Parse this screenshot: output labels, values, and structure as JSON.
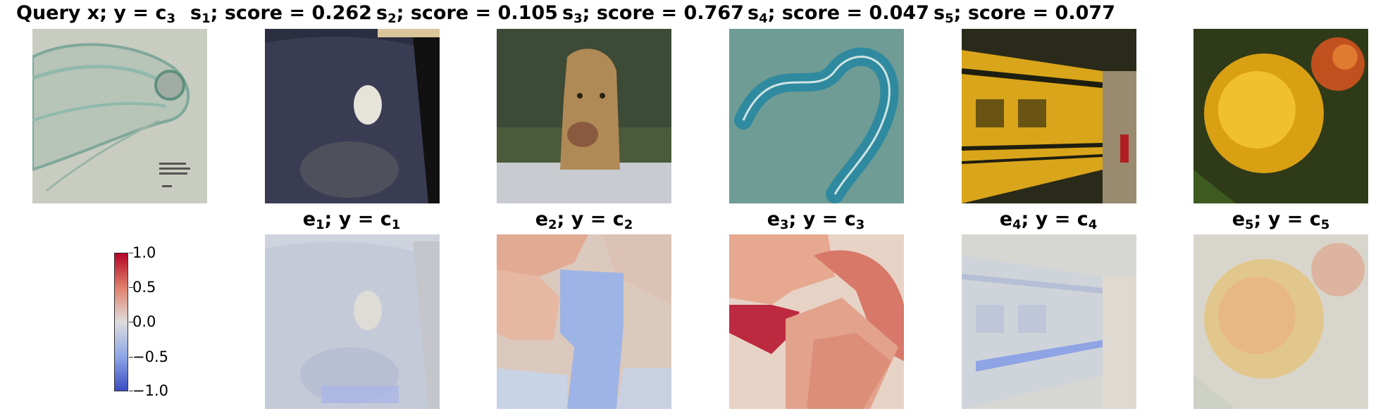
{
  "top_row": [
    {
      "prefix": "Query x; y = c",
      "sub": "3",
      "suffix": "",
      "image": "microscopy-worm-image"
    },
    {
      "prefix": "s",
      "sub": "1",
      "suffix": "; score = 0.262",
      "image": "dog-in-car-image"
    },
    {
      "prefix": "s",
      "sub": "2",
      "suffix": "; score = 0.105",
      "image": "lioness-image"
    },
    {
      "prefix": "s",
      "sub": "3",
      "suffix": "; score = 0.767",
      "image": "stained-worm-image"
    },
    {
      "prefix": "s",
      "sub": "4",
      "suffix": "; score = 0.047",
      "image": "school-bus-image"
    },
    {
      "prefix": "s",
      "sub": "5",
      "suffix": "; score = 0.077",
      "image": "yellow-flower-image"
    }
  ],
  "bottom_row": [
    {
      "prefix": "e",
      "sub": "1",
      "mid": "; y = c",
      "sub2": "1"
    },
    {
      "prefix": "e",
      "sub": "2",
      "mid": "; y = c",
      "sub2": "2"
    },
    {
      "prefix": "e",
      "sub": "3",
      "mid": "; y = c",
      "sub2": "3"
    },
    {
      "prefix": "e",
      "sub": "4",
      "mid": "; y = c",
      "sub2": "4"
    },
    {
      "prefix": "e",
      "sub": "5",
      "mid": "; y = c",
      "sub2": "5"
    }
  ],
  "colorbar": {
    "ticks": [
      "1.0",
      "0.5",
      "0.0",
      "−0.5",
      "−1.0"
    ],
    "colors": {
      "high": "#b40426",
      "mid": "#dddddd",
      "low": "#3b4cc0"
    }
  }
}
